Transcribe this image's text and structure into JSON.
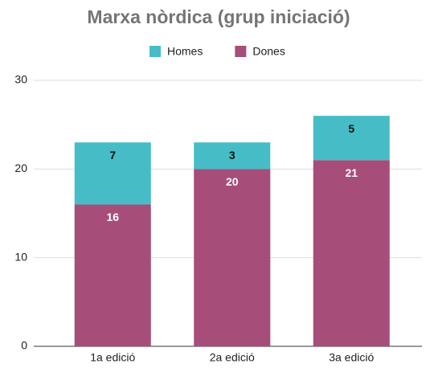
{
  "chart_data": {
    "type": "stacked_bar",
    "title": "Marxa nòrdica (grup iniciació)",
    "categories": [
      "1a edició",
      "2a edició",
      "3a edició"
    ],
    "series": [
      {
        "name": "Homes",
        "color": "#46bdc6",
        "values": [
          7,
          3,
          5
        ]
      },
      {
        "name": "Dones",
        "color": "#a64d79",
        "values": [
          16,
          20,
          21
        ]
      }
    ],
    "ylim": [
      0,
      30
    ],
    "yticks": [
      0,
      10,
      20,
      30
    ],
    "grid": true,
    "legend": "top"
  }
}
